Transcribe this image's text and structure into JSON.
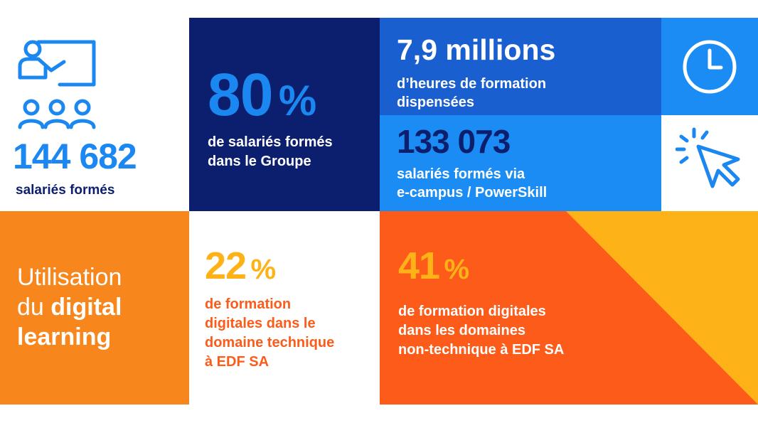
{
  "colors": {
    "light_blue": "#1b87f0",
    "navy": "#0c1f6e",
    "mid_blue": "#1a5fd0",
    "sky_blue": "#1c8cf5",
    "orange": "#f7861c",
    "orange_red": "#fc5b1a",
    "yellow": "#fdb218",
    "white": "#ffffff"
  },
  "icons": {
    "training": "teacher-board-icon",
    "clock": "clock-icon",
    "cursor": "cursor-click-icon"
  },
  "stats": {
    "total_trained": {
      "number": "144 682",
      "label": "salariés formés"
    },
    "group_trained": {
      "number": "80",
      "unit": "%",
      "label_line1": "de salariés formés",
      "label_line2": "dans le Groupe"
    },
    "training_hours": {
      "number": "7,9 millions",
      "label_line1": "d’heures de formation",
      "label_line2": "dispensées"
    },
    "ecampus": {
      "number": "133 073",
      "label_line1": "salariés formés via",
      "label_line2": "e-campus / PowerSkill"
    },
    "technical": {
      "number": "22",
      "unit": "%",
      "label_line1": "de formation",
      "label_line2": "digitales dans le",
      "label_line3": "domaine technique",
      "label_line4": "à EDF SA"
    },
    "non_technical": {
      "number": "41",
      "unit": "%",
      "label_line1": "de formation digitales",
      "label_line2": "dans les domaines",
      "label_line3": "non-technique à EDF SA"
    }
  },
  "digital": {
    "line1": "Utilisation",
    "line2a": "du",
    "line2b": "digital",
    "line3": "learning"
  }
}
